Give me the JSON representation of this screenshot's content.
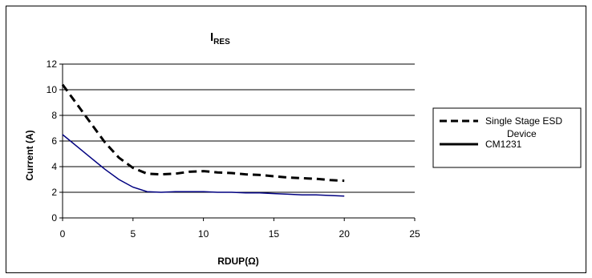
{
  "chart_data": {
    "type": "line",
    "title_main": "I",
    "title_sub": "RES",
    "xlabel": "RDUP(Ω)",
    "ylabel": "Current (A)",
    "xlim": [
      0,
      25
    ],
    "ylim": [
      0,
      12
    ],
    "x_ticks": [
      0,
      5,
      10,
      15,
      20,
      25
    ],
    "y_ticks": [
      0,
      2,
      4,
      6,
      8,
      10,
      12
    ],
    "grid": "horizontal",
    "legend_position": "right",
    "series": [
      {
        "name": "Single Stage ESD Device",
        "legend_lines": [
          "Single Stage ESD",
          "Device"
        ],
        "color": "#000000",
        "style": "dashed",
        "x": [
          0,
          1,
          2,
          3,
          4,
          5,
          6,
          7,
          8,
          9,
          10,
          11,
          12,
          13,
          14,
          15,
          16,
          17,
          18,
          19,
          20
        ],
        "y": [
          10.4,
          8.9,
          7.4,
          5.9,
          4.7,
          3.9,
          3.45,
          3.4,
          3.45,
          3.6,
          3.65,
          3.55,
          3.5,
          3.4,
          3.35,
          3.25,
          3.15,
          3.1,
          3.05,
          2.95,
          2.9
        ]
      },
      {
        "name": "CM1231",
        "legend_lines": [
          "CM1231"
        ],
        "color": "#000080",
        "legend_color": "#000000",
        "style": "solid",
        "x": [
          0,
          1,
          2,
          3,
          4,
          5,
          6,
          7,
          8,
          9,
          10,
          11,
          12,
          13,
          14,
          15,
          16,
          17,
          18,
          19,
          20
        ],
        "y": [
          6.5,
          5.6,
          4.7,
          3.8,
          3.0,
          2.4,
          2.05,
          2.0,
          2.05,
          2.05,
          2.05,
          2.0,
          2.0,
          1.95,
          1.95,
          1.9,
          1.85,
          1.8,
          1.8,
          1.75,
          1.7
        ]
      }
    ]
  }
}
